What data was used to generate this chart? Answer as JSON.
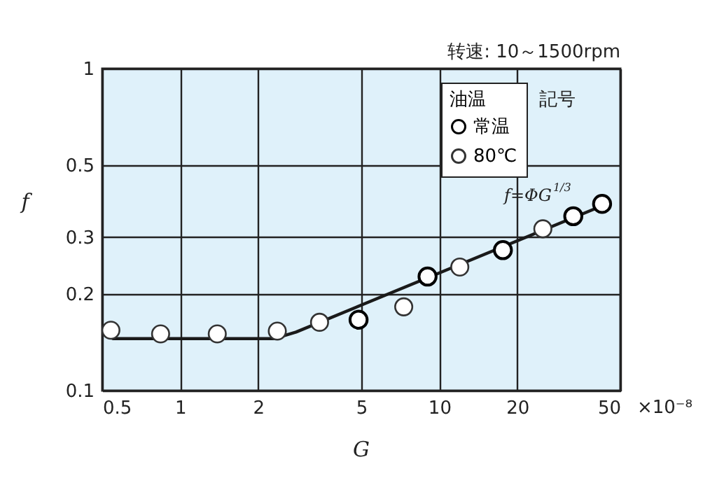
{
  "chart_data": {
    "type": "scatter",
    "xlabel": "G",
    "ylabel": "f",
    "legend_title": "油温",
    "annotations": [
      "转速: 10～1500rpm",
      "記号",
      "×10⁻⁸",
      {
        "text": "f=ΦG$^{1/3}$",
        "x": 30,
        "y": 0.33
      }
    ],
    "series": [
      {
        "type": "line",
        "marker": "none",
        "color": "#1a1a1a",
        "x": [
          0.55,
          2.3,
          2.8,
          42.5
        ],
        "values": [
          0.145,
          0.145,
          0.152,
          0.375
        ]
      },
      {
        "name": "常温",
        "color": "#000000",
        "x": [
          4.88,
          9.01,
          17.6,
          32.9,
          42.5
        ],
        "values": [
          0.166,
          0.226,
          0.273,
          0.348,
          0.38
        ]
      },
      {
        "name": "80℃",
        "color": "#333333",
        "x": [
          0.54,
          0.84,
          1.39,
          2.37,
          3.45,
          7.29,
          12.0,
          25.1
        ],
        "values": [
          0.154,
          0.15,
          0.15,
          0.153,
          0.163,
          0.182,
          0.242,
          0.318
        ]
      }
    ],
    "xlim": [
      0.5,
      50
    ],
    "ylim": [
      0.1,
      1
    ],
    "xticks": [
      0.5,
      1,
      2,
      5,
      10,
      20,
      50
    ],
    "yticks": [
      0.1,
      0.2,
      0.3,
      0.5,
      1
    ],
    "log": "xy",
    "grid": true,
    "legend": "top right",
    "marker": "circle",
    "line_style": "solid"
  }
}
